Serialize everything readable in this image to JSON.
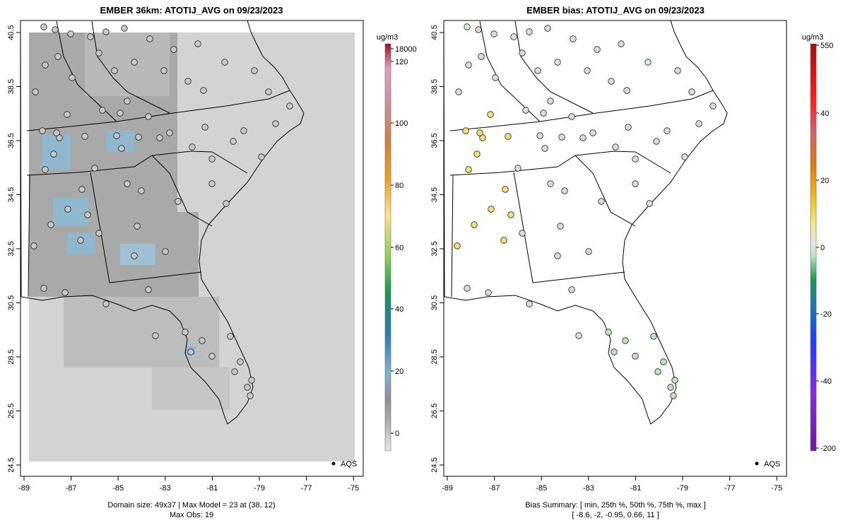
{
  "panel_left": {
    "title": "EMBER 36km: ATOTIJ_AVG on 09/23/2023",
    "unit": "ug/m3",
    "colorbar_labels": [
      "18000",
      "120",
      "100",
      "80",
      "60",
      "40",
      "20",
      "0"
    ],
    "legend_label": "AQS",
    "footer_line1": "Domain size: 49x37 | Max Model = 23 at (38, 12)",
    "footer_line2": "Max Obs: 19"
  },
  "panel_right": {
    "title": "EMBER bias: ATOTIJ_AVG on 09/23/2023",
    "unit": "ug/m3",
    "colorbar_labels": [
      "550",
      "40",
      "20",
      "0",
      "-20",
      "-40",
      "-200"
    ],
    "legend_label": "AQS",
    "footer_line1": "Bias Summary: [ min, 25th %, 50th %, 75th %, max ]",
    "footer_line2": "[ -8.6,   -2,   -0.95,   0.66,   11 ]"
  },
  "axes": {
    "x_ticks": [
      "-89",
      "-87",
      "-85",
      "-83",
      "-81",
      "-79",
      "-77",
      "-75"
    ],
    "y_ticks": [
      "40.5",
      "38.5",
      "36.5",
      "34.5",
      "32.5",
      "30.5",
      "28.5",
      "26.5",
      "24.5"
    ]
  },
  "colors": {
    "no_data_gray": "#d3d3d3",
    "mid_gray": "#a9a9a9",
    "light_blue": "#7fb3d5",
    "coast": "#000000"
  }
}
